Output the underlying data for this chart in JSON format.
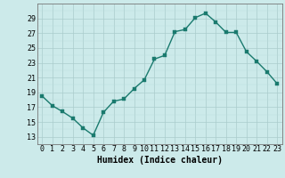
{
  "x": [
    0,
    1,
    2,
    3,
    4,
    5,
    6,
    7,
    8,
    9,
    10,
    11,
    12,
    13,
    14,
    15,
    16,
    17,
    18,
    19,
    20,
    21,
    22,
    23
  ],
  "y": [
    18.5,
    17.2,
    16.4,
    15.5,
    14.2,
    13.2,
    16.3,
    17.8,
    18.1,
    19.5,
    20.7,
    23.5,
    24.0,
    27.2,
    27.5,
    29.1,
    29.7,
    28.5,
    27.1,
    27.1,
    24.5,
    23.2,
    21.8,
    20.2
  ],
  "line_color": "#1a7a6e",
  "marker_color": "#1a7a6e",
  "bg_color": "#cceaea",
  "grid_major_color": "#aacccc",
  "grid_minor_color": "#bbdddd",
  "xlabel": "Humidex (Indice chaleur)",
  "xlim": [
    -0.5,
    23.5
  ],
  "ylim": [
    12,
    31
  ],
  "yticks": [
    13,
    15,
    17,
    19,
    21,
    23,
    25,
    27,
    29
  ],
  "xticks": [
    0,
    1,
    2,
    3,
    4,
    5,
    6,
    7,
    8,
    9,
    10,
    11,
    12,
    13,
    14,
    15,
    16,
    17,
    18,
    19,
    20,
    21,
    22,
    23
  ],
  "label_fontsize": 7,
  "tick_fontsize": 6,
  "line_width": 1.0,
  "marker_size": 2.5
}
